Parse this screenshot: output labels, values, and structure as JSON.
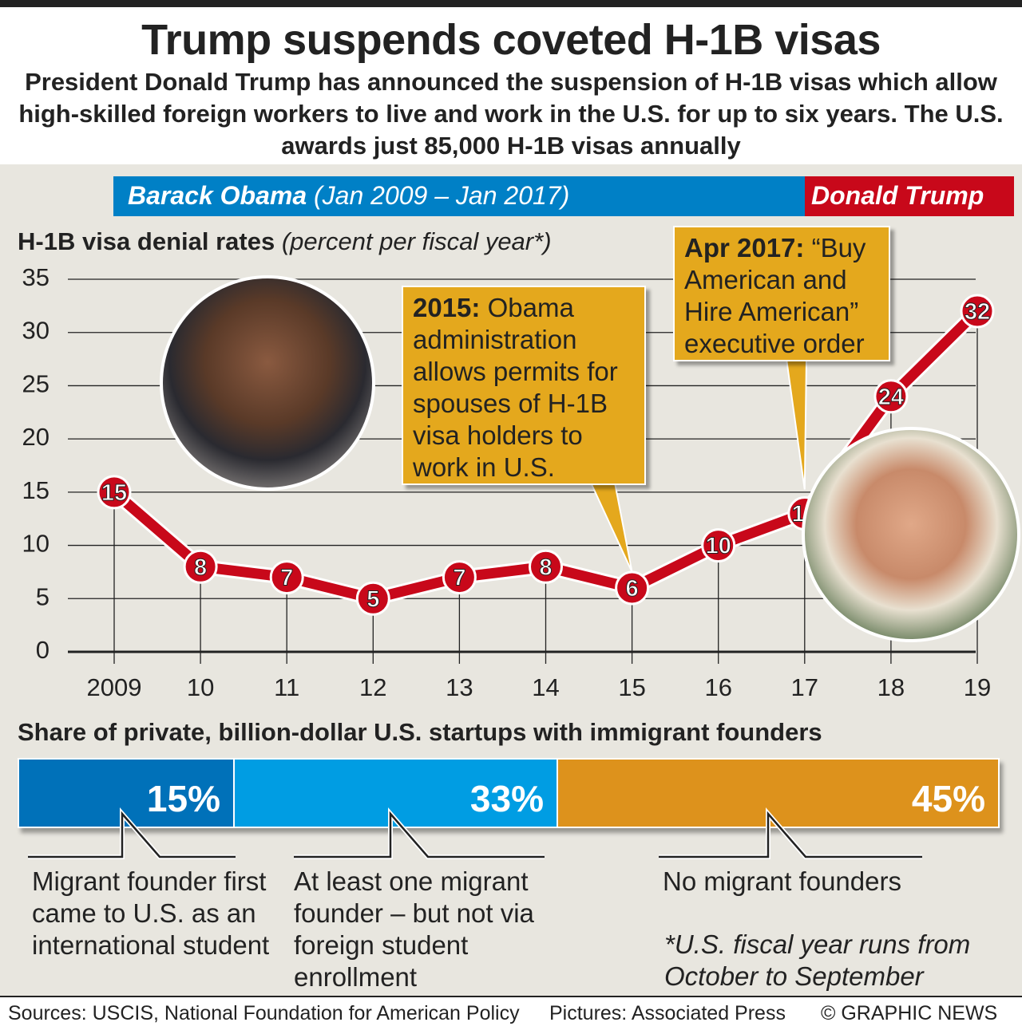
{
  "header": {
    "title": "Trump suspends coveted H-1B visas",
    "subtitle": "President Donald Trump has announced the suspension of H-1B visas which allow high-skilled foreign workers to live and work in the U.S. for up to six years. The U.S. awards just 85,000 H-1B visas annually"
  },
  "band": {
    "obama_name": "Barack Obama",
    "obama_dates": "(Jan 2009 – Jan 2017)",
    "trump_name": "Donald Trump",
    "obama_color": "#0080c6",
    "trump_color": "#c8081a"
  },
  "chart_data": {
    "type": "line",
    "title": "H-1B visa denial rates",
    "subtitle": "(percent per fiscal year*)",
    "x": [
      "2009",
      "10",
      "11",
      "12",
      "13",
      "14",
      "15",
      "16",
      "17",
      "18",
      "19"
    ],
    "series": [
      {
        "values": [
          15,
          8,
          7,
          5,
          7,
          8,
          6,
          10,
          13,
          24,
          32
        ],
        "color": "#c8081a"
      }
    ],
    "ylim": [
      0,
      35
    ],
    "yticks": [
      0,
      5,
      10,
      15,
      20,
      25,
      30,
      35
    ],
    "grid": true,
    "annotations": [
      {
        "x": "15",
        "bold": "2015:",
        "text": "Obama administration allows permits for spouses of H-1B visa holders to work in U.S."
      },
      {
        "x": "17",
        "bold": "Apr 2017:",
        "text": "“Buy American and Hire American” executive order"
      }
    ]
  },
  "startups": {
    "title": "Share of private, billion-dollar U.S. startups with immigrant founders",
    "segments": [
      {
        "value": 15,
        "label": "15%",
        "desc": "Migrant founder first came to U.S. as an international student",
        "color": "#0071b9"
      },
      {
        "value": 33,
        "label": "33%",
        "desc": "At least one migrant founder – but not via foreign student enrollment",
        "color": "#009de3"
      },
      {
        "value": 45,
        "label": "45%",
        "desc": "No migrant founders",
        "color": "#dd921c"
      }
    ]
  },
  "note": "*U.S. fiscal year runs from October to September",
  "footer": {
    "sources": "Sources: USCIS, National Foundation for American Policy",
    "pictures": "Pictures: Associated Press",
    "credit": "© GRAPHIC NEWS"
  }
}
